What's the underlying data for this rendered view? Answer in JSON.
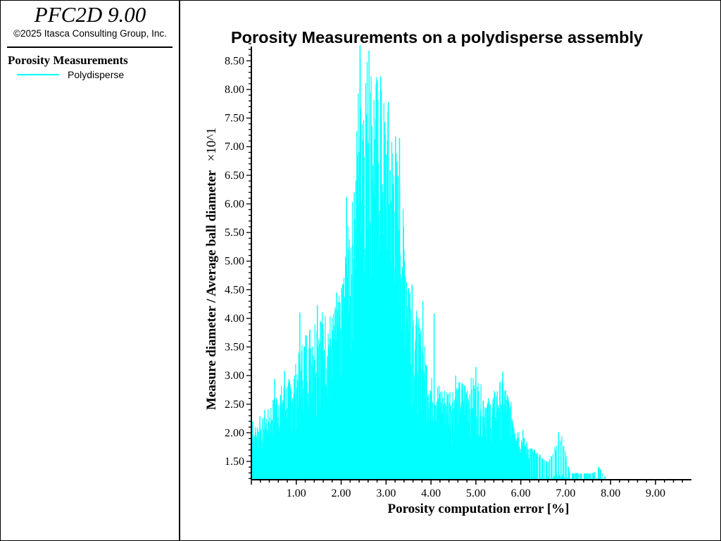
{
  "header": {
    "app_title": "PFC2D 9.00",
    "copyright": "©2025 Itasca Consulting Group, Inc."
  },
  "legend": {
    "title": "Porosity Measurements",
    "items": [
      {
        "label": "Polydisperse",
        "color": "#00ffff"
      }
    ]
  },
  "chart_data": {
    "type": "line",
    "title": "Porosity Measurements on a polydisperse assembly",
    "xlabel": "Porosity computation error [%]",
    "ylabel": "Measure diameter / Average ball diameter",
    "y_multiplier": "×10^1",
    "xlim": [
      0,
      9.8
    ],
    "ylim": [
      11.8,
      88.0
    ],
    "x_ticks": [
      "1.00",
      "2.00",
      "3.00",
      "4.00",
      "5.00",
      "6.00",
      "7.00",
      "8.00",
      "9.00"
    ],
    "y_ticks": [
      "1.50",
      "2.00",
      "2.50",
      "3.00",
      "3.50",
      "4.00",
      "4.50",
      "5.00",
      "5.50",
      "6.00",
      "6.50",
      "7.00",
      "7.50",
      "8.00",
      "8.50"
    ],
    "grid": false,
    "legend_position": "left-panel",
    "series": [
      {
        "name": "Polydisperse",
        "color": "#00ffff",
        "envelope": {
          "x": [
            0.05,
            0.3,
            0.6,
            0.9,
            1.2,
            1.5,
            1.8,
            2.0,
            2.2,
            2.3,
            2.4,
            2.6,
            2.8,
            3.0,
            3.2,
            3.4,
            3.6,
            3.8,
            4.0,
            4.3,
            4.6,
            5.0,
            5.3,
            5.6,
            6.0,
            6.3,
            6.6,
            6.9,
            7.1,
            7.6,
            7.75,
            7.9
          ],
          "y": [
            21,
            23,
            28,
            30,
            38,
            42,
            41,
            45,
            60,
            62,
            88,
            87,
            83,
            78,
            72,
            58,
            44,
            38,
            30,
            28,
            29,
            30,
            26,
            30,
            20,
            17,
            15,
            20,
            13,
            13,
            14,
            12
          ]
        },
        "spikes": [
          {
            "x": 0.03,
            "y": 22.0
          },
          {
            "x": 0.19,
            "y": 22.9
          },
          {
            "x": 0.3,
            "y": 24.0
          },
          {
            "x": 0.52,
            "y": 29.4
          },
          {
            "x": 0.74,
            "y": 30.8
          },
          {
            "x": 1.08,
            "y": 41.0
          },
          {
            "x": 1.47,
            "y": 42.3
          },
          {
            "x": 1.9,
            "y": 44.5
          },
          {
            "x": 2.03,
            "y": 46.0
          },
          {
            "x": 2.12,
            "y": 61.2
          },
          {
            "x": 2.29,
            "y": 62.0
          },
          {
            "x": 2.42,
            "y": 87.7
          },
          {
            "x": 2.62,
            "y": 86.8
          },
          {
            "x": 2.88,
            "y": 82.3
          },
          {
            "x": 3.05,
            "y": 77.8
          },
          {
            "x": 3.21,
            "y": 71.8
          },
          {
            "x": 3.3,
            "y": 71.5
          },
          {
            "x": 3.58,
            "y": 45.9
          },
          {
            "x": 3.82,
            "y": 43.0
          },
          {
            "x": 4.07,
            "y": 40.8
          },
          {
            "x": 4.55,
            "y": 30.0
          },
          {
            "x": 5.0,
            "y": 31.5
          },
          {
            "x": 5.6,
            "y": 30.7
          },
          {
            "x": 6.05,
            "y": 20.5
          },
          {
            "x": 6.3,
            "y": 17.1
          },
          {
            "x": 6.84,
            "y": 20.1
          },
          {
            "x": 7.73,
            "y": 14.0
          }
        ]
      }
    ]
  }
}
